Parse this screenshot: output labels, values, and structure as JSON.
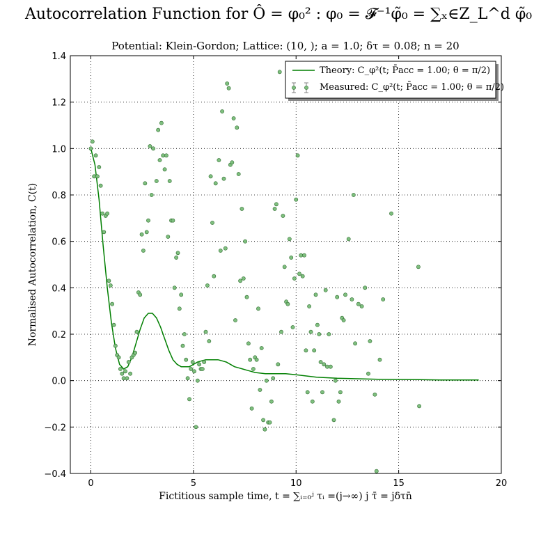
{
  "title": "Autocorrelation Function for Ô = φ₀² : φ₀ = 𝓕⁻¹φ̃₀ = ∑ₓ∈Z_L^d φ̃₀",
  "subtitle": "Potential: Klein-Gordon; Lattice: (10, ); a = 1.0; δτ = 0.08; n = 20",
  "colors": {
    "theory": "#007f00",
    "measured_fill": "#7fbf7f",
    "measured_edge": "#2d6b2d"
  },
  "chart_data": {
    "type": "scatter",
    "xlabel": "Fictitious sample time, t = ∑ᵢ₌₀ʲ τᵢ =(j→∞) j τ̄ = jδτn̄",
    "ylabel": "Normalised Autocorrelation, C(t)",
    "xlim": [
      -1,
      20
    ],
    "ylim": [
      -0.4,
      1.4
    ],
    "xticks": [
      0,
      5,
      10,
      15,
      20
    ],
    "yticks": [
      -0.4,
      -0.2,
      0.0,
      0.2,
      0.4,
      0.6,
      0.8,
      1.0,
      1.2,
      1.4
    ],
    "grid": true,
    "legend_position": "top-right",
    "series": [
      {
        "name": "Theory: C_φ²(t; P̄acc = 1.00; θ = π/2)",
        "kind": "line",
        "x": [
          0,
          0.2,
          0.4,
          0.6,
          0.8,
          1.0,
          1.2,
          1.4,
          1.6,
          1.8,
          2.0,
          2.2,
          2.4,
          2.6,
          2.8,
          3.0,
          3.2,
          3.4,
          3.6,
          3.8,
          4.0,
          4.2,
          4.4,
          4.6,
          4.8,
          5.0,
          5.2,
          5.4,
          5.6,
          5.8,
          6.0,
          6.2,
          6.4,
          6.6,
          6.8,
          7.0,
          7.2,
          7.4,
          7.6,
          7.8,
          8.0,
          8.5,
          9.0,
          9.5,
          10.0,
          10.5,
          11.0,
          12.0,
          13.0,
          14.0,
          15.0,
          16.0,
          17.0,
          18.0,
          18.9
        ],
        "y": [
          1.0,
          0.93,
          0.78,
          0.58,
          0.4,
          0.25,
          0.14,
          0.07,
          0.05,
          0.06,
          0.1,
          0.16,
          0.22,
          0.27,
          0.29,
          0.29,
          0.27,
          0.23,
          0.18,
          0.13,
          0.09,
          0.07,
          0.06,
          0.06,
          0.06,
          0.07,
          0.08,
          0.085,
          0.09,
          0.09,
          0.09,
          0.09,
          0.085,
          0.08,
          0.07,
          0.06,
          0.055,
          0.05,
          0.045,
          0.04,
          0.035,
          0.03,
          0.03,
          0.03,
          0.025,
          0.02,
          0.015,
          0.01,
          0.008,
          0.006,
          0.005,
          0.004,
          0.003,
          0.003,
          0.003
        ]
      },
      {
        "name": "Measured: C_φ²(t; P̄acc = 1.00; θ = π/2)",
        "kind": "points",
        "points": [
          [
            0.0,
            1.0
          ],
          [
            0.08,
            1.03
          ],
          [
            0.16,
            0.88
          ],
          [
            0.24,
            0.97
          ],
          [
            0.32,
            0.88
          ],
          [
            0.4,
            0.92
          ],
          [
            0.48,
            0.84
          ],
          [
            0.56,
            0.72
          ],
          [
            0.64,
            0.64
          ],
          [
            0.72,
            0.71
          ],
          [
            0.8,
            0.72
          ],
          [
            0.88,
            0.43
          ],
          [
            0.96,
            0.41
          ],
          [
            1.04,
            0.33
          ],
          [
            1.12,
            0.24
          ],
          [
            1.2,
            0.15
          ],
          [
            1.28,
            0.11
          ],
          [
            1.36,
            0.1
          ],
          [
            1.44,
            0.05
          ],
          [
            1.52,
            0.03
          ],
          [
            1.6,
            0.01
          ],
          [
            1.68,
            0.04
          ],
          [
            1.76,
            0.01
          ],
          [
            1.84,
            0.08
          ],
          [
            1.92,
            0.03
          ],
          [
            2.0,
            0.1
          ],
          [
            2.08,
            0.11
          ],
          [
            2.16,
            0.12
          ],
          [
            2.24,
            0.21
          ],
          [
            2.32,
            0.38
          ],
          [
            2.4,
            0.37
          ],
          [
            2.48,
            0.63
          ],
          [
            2.56,
            0.56
          ],
          [
            2.64,
            0.85
          ],
          [
            2.72,
            0.64
          ],
          [
            2.8,
            0.69
          ],
          [
            2.88,
            1.01
          ],
          [
            2.96,
            0.8
          ],
          [
            3.04,
            1.0
          ],
          [
            3.2,
            0.86
          ],
          [
            3.28,
            1.08
          ],
          [
            3.36,
            0.95
          ],
          [
            3.44,
            1.11
          ],
          [
            3.52,
            0.97
          ],
          [
            3.6,
            0.91
          ],
          [
            3.68,
            0.97
          ],
          [
            3.76,
            0.62
          ],
          [
            3.84,
            0.86
          ],
          [
            3.92,
            0.69
          ],
          [
            4.0,
            0.69
          ],
          [
            4.08,
            0.4
          ],
          [
            4.16,
            0.53
          ],
          [
            4.24,
            0.55
          ],
          [
            4.32,
            0.31
          ],
          [
            4.4,
            0.37
          ],
          [
            4.48,
            0.15
          ],
          [
            4.56,
            0.2
          ],
          [
            4.64,
            0.09
          ],
          [
            4.72,
            0.01
          ],
          [
            4.8,
            -0.08
          ],
          [
            4.88,
            0.05
          ],
          [
            4.96,
            0.08
          ],
          [
            5.04,
            0.04
          ],
          [
            5.12,
            -0.2
          ],
          [
            5.2,
            0.0
          ],
          [
            5.28,
            0.07
          ],
          [
            5.36,
            0.05
          ],
          [
            5.44,
            0.05
          ],
          [
            5.52,
            0.08
          ],
          [
            5.6,
            0.21
          ],
          [
            5.68,
            0.41
          ],
          [
            5.76,
            0.17
          ],
          [
            5.84,
            0.88
          ],
          [
            5.92,
            0.68
          ],
          [
            6.0,
            0.45
          ],
          [
            6.08,
            0.85
          ],
          [
            6.24,
            0.95
          ],
          [
            6.32,
            0.56
          ],
          [
            6.4,
            1.16
          ],
          [
            6.48,
            0.87
          ],
          [
            6.56,
            0.57
          ],
          [
            6.64,
            1.28
          ],
          [
            6.72,
            1.26
          ],
          [
            6.8,
            0.93
          ],
          [
            6.88,
            0.94
          ],
          [
            6.96,
            1.13
          ],
          [
            7.04,
            0.26
          ],
          [
            7.12,
            1.09
          ],
          [
            7.2,
            0.89
          ],
          [
            7.28,
            0.43
          ],
          [
            7.36,
            0.74
          ],
          [
            7.44,
            0.44
          ],
          [
            7.52,
            0.6
          ],
          [
            7.6,
            0.36
          ],
          [
            7.68,
            0.16
          ],
          [
            7.76,
            0.09
          ],
          [
            7.84,
            -0.12
          ],
          [
            7.92,
            0.05
          ],
          [
            8.0,
            0.1
          ],
          [
            8.08,
            0.09
          ],
          [
            8.16,
            0.31
          ],
          [
            8.24,
            -0.04
          ],
          [
            8.32,
            0.14
          ],
          [
            8.4,
            -0.17
          ],
          [
            8.48,
            -0.21
          ],
          [
            8.56,
            0.0
          ],
          [
            8.64,
            -0.18
          ],
          [
            8.72,
            -0.18
          ],
          [
            8.8,
            -0.09
          ],
          [
            8.88,
            0.01
          ],
          [
            8.96,
            0.74
          ],
          [
            9.04,
            0.76
          ],
          [
            9.12,
            0.07
          ],
          [
            9.2,
            1.33
          ],
          [
            9.28,
            0.21
          ],
          [
            9.36,
            0.71
          ],
          [
            9.44,
            0.49
          ],
          [
            9.52,
            0.34
          ],
          [
            9.6,
            0.33
          ],
          [
            9.68,
            0.61
          ],
          [
            9.76,
            0.53
          ],
          [
            9.84,
            0.23
          ],
          [
            9.92,
            0.44
          ],
          [
            10.0,
            0.78
          ],
          [
            10.08,
            0.97
          ],
          [
            10.16,
            0.46
          ],
          [
            10.24,
            0.54
          ],
          [
            10.32,
            0.45
          ],
          [
            10.4,
            0.54
          ],
          [
            10.48,
            0.13
          ],
          [
            10.56,
            -0.05
          ],
          [
            10.64,
            0.32
          ],
          [
            10.72,
            0.21
          ],
          [
            10.8,
            -0.09
          ],
          [
            10.88,
            0.13
          ],
          [
            10.96,
            0.37
          ],
          [
            11.04,
            0.24
          ],
          [
            11.12,
            0.2
          ],
          [
            11.2,
            0.08
          ],
          [
            11.28,
            -0.05
          ],
          [
            11.36,
            0.07
          ],
          [
            11.44,
            0.39
          ],
          [
            11.52,
            0.06
          ],
          [
            11.6,
            0.2
          ],
          [
            11.68,
            0.06
          ],
          [
            11.84,
            -0.17
          ],
          [
            11.92,
            0.0
          ],
          [
            12.0,
            0.36
          ],
          [
            12.08,
            -0.09
          ],
          [
            12.16,
            -0.05
          ],
          [
            12.24,
            0.27
          ],
          [
            12.32,
            0.26
          ],
          [
            12.4,
            0.37
          ],
          [
            12.56,
            0.61
          ],
          [
            12.72,
            0.35
          ],
          [
            12.8,
            0.8
          ],
          [
            12.88,
            0.16
          ],
          [
            13.04,
            0.33
          ],
          [
            13.2,
            0.32
          ],
          [
            13.36,
            0.4
          ],
          [
            13.52,
            0.03
          ],
          [
            13.6,
            0.17
          ],
          [
            13.84,
            -0.06
          ],
          [
            13.92,
            -0.39
          ],
          [
            14.08,
            0.09
          ],
          [
            14.24,
            0.35
          ],
          [
            14.64,
            0.72
          ],
          [
            15.96,
            0.49
          ],
          [
            16.0,
            -0.11
          ]
        ]
      }
    ]
  }
}
